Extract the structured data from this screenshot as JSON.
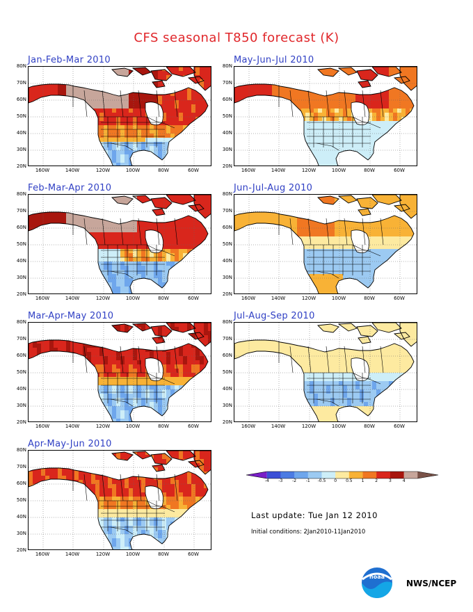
{
  "title": "CFS seasonal T850 forecast (K)",
  "panels": [
    {
      "title": "Jan-Feb-Mar 2010",
      "scenario": "jfm"
    },
    {
      "title": "Feb-Mar-Apr 2010",
      "scenario": "fma"
    },
    {
      "title": "Mar-Apr-May 2010",
      "scenario": "mam"
    },
    {
      "title": "Apr-May-Jun 2010",
      "scenario": "amj"
    },
    {
      "title": "May-Jun-Jul 2010",
      "scenario": "mjj"
    },
    {
      "title": "Jun-Jul-Aug 2010",
      "scenario": "jja"
    },
    {
      "title": "Jul-Aug-Sep 2010",
      "scenario": "jas"
    }
  ],
  "axes": {
    "lat_labels": [
      "80N",
      "70N",
      "60N",
      "50N",
      "40N",
      "30N",
      "20N"
    ],
    "lon_labels": [
      "160W",
      "140W",
      "120W",
      "100W",
      "80W",
      "60W"
    ]
  },
  "legend": {
    "ticks": [
      "-4",
      "-3",
      "-2",
      "-1",
      "-0.5",
      "0",
      "0.5",
      "1",
      "2",
      "3",
      "4"
    ],
    "colors": [
      "#7a1fc8",
      "#3c4fd6",
      "#4b7be3",
      "#6ea6ec",
      "#9ccaf2",
      "#cdeef8",
      "#fdeaa0",
      "#f8b236",
      "#f07722",
      "#d9261c",
      "#a8160e",
      "#c7a69b",
      "#7a5248"
    ]
  },
  "info": {
    "last_update": "Last update: Tue Jan 12 2010",
    "initial_conditions": "Initial conditions: 2Jan2010-11Jan2010"
  },
  "logo": {
    "text": "noaa",
    "org": "NWS/NCEP"
  }
}
